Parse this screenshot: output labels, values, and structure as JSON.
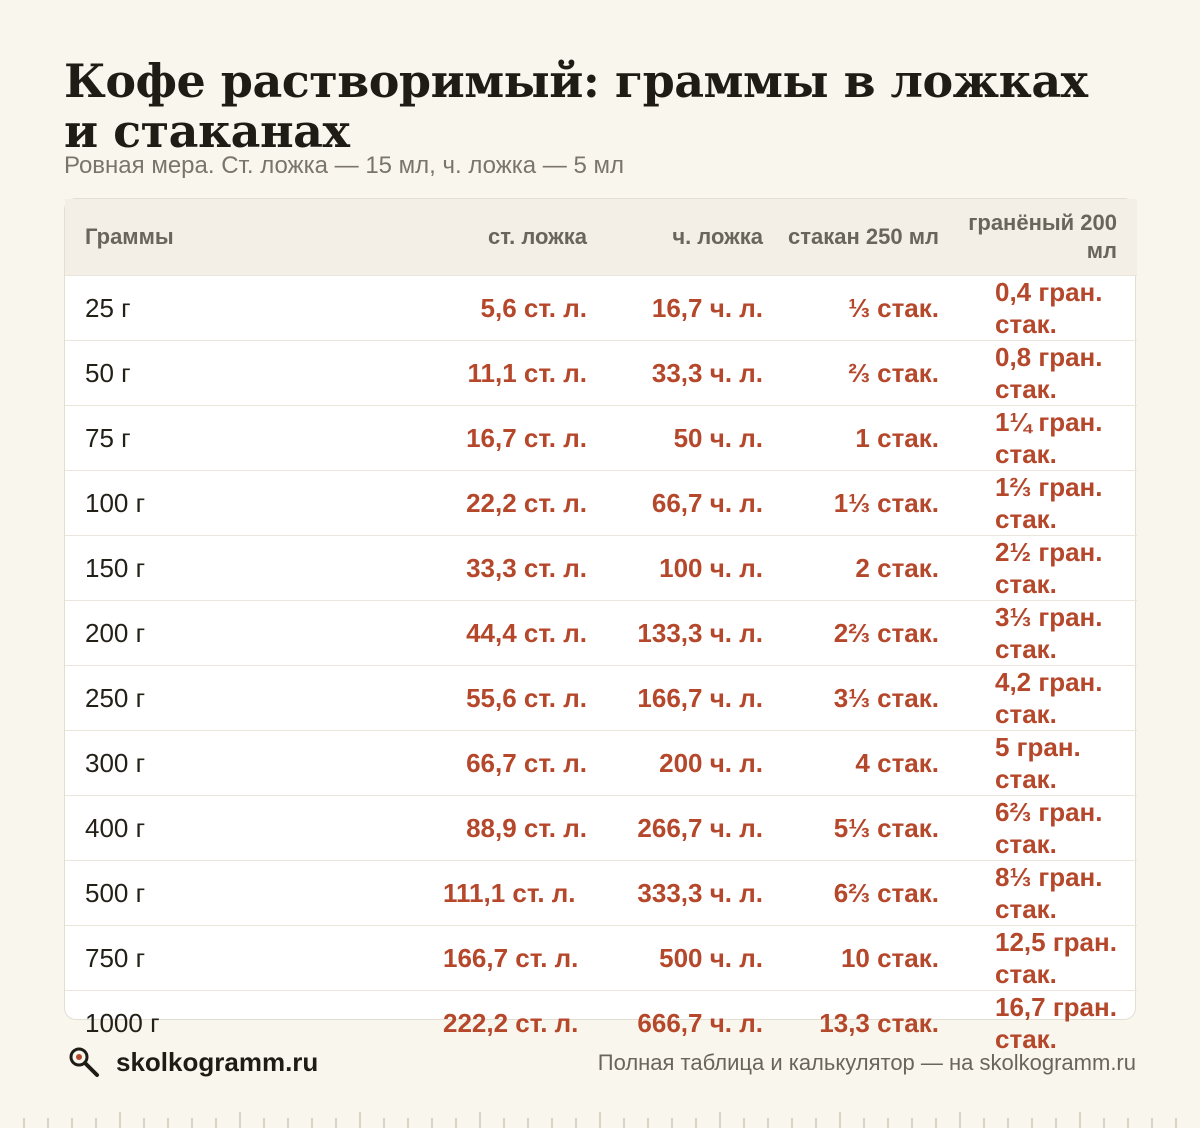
{
  "title": "Кофе растворимый: граммы в ложках и стаканах",
  "subtitle": "Ровная мера. Ст. ложка — 15 мл, ч. ложка — 5 мл",
  "table": {
    "headers": [
      "Граммы",
      "ст. ложка",
      "ч. ложка",
      "стакан 250 мл",
      "гранёный 200 мл"
    ],
    "rows": [
      [
        "25 г",
        "5,6 ст. л.",
        "16,7 ч. л.",
        "⅓ стак.",
        "0,4 гран. стак."
      ],
      [
        "50 г",
        "11,1 ст. л.",
        "33,3 ч. л.",
        "⅔ стак.",
        "0,8 гран. стак."
      ],
      [
        "75 г",
        "16,7 ст. л.",
        "50 ч. л.",
        "1 стак.",
        "1¼ гран. стак."
      ],
      [
        "100 г",
        "22,2 ст. л.",
        "66,7 ч. л.",
        "1⅓ стак.",
        "1⅔ гран. стак."
      ],
      [
        "150 г",
        "33,3 ст. л.",
        "100 ч. л.",
        "2 стак.",
        "2½ гран. стак."
      ],
      [
        "200 г",
        "44,4 ст. л.",
        "133,3 ч. л.",
        "2⅔ стак.",
        "3⅓ гран. стак."
      ],
      [
        "250 г",
        "55,6 ст. л.",
        "166,7 ч. л.",
        "3⅓ стак.",
        "4,2 гран. стак."
      ],
      [
        "300 г",
        "66,7 ст. л.",
        "200 ч. л.",
        "4 стак.",
        "5 гран. стак."
      ],
      [
        "400 г",
        "88,9 ст. л.",
        "266,7 ч. л.",
        "5⅓ стак.",
        "6⅔ гран. стак."
      ],
      [
        "500 г",
        "111,1 ст. л.",
        "333,3 ч. л.",
        "6⅔ стак.",
        "8⅓ гран. стак."
      ],
      [
        "750 г",
        "166,7 ст. л.",
        "500 ч. л.",
        "10 стак.",
        "12,5 гран. стак."
      ],
      [
        "1000 г",
        "222,2 ст. л.",
        "666,7 ч. л.",
        "13,3 стак.",
        "16,7 гран. стак."
      ]
    ]
  },
  "footer": {
    "brand": "skolkogramm.ru",
    "note": "Полная таблица и калькулятор — на skolkogramm.ru",
    "icon": "magnifier-icon"
  },
  "colors": {
    "background": "#f9f6ee",
    "accent": "#b5472b",
    "header_bg": "#f3efe6"
  }
}
